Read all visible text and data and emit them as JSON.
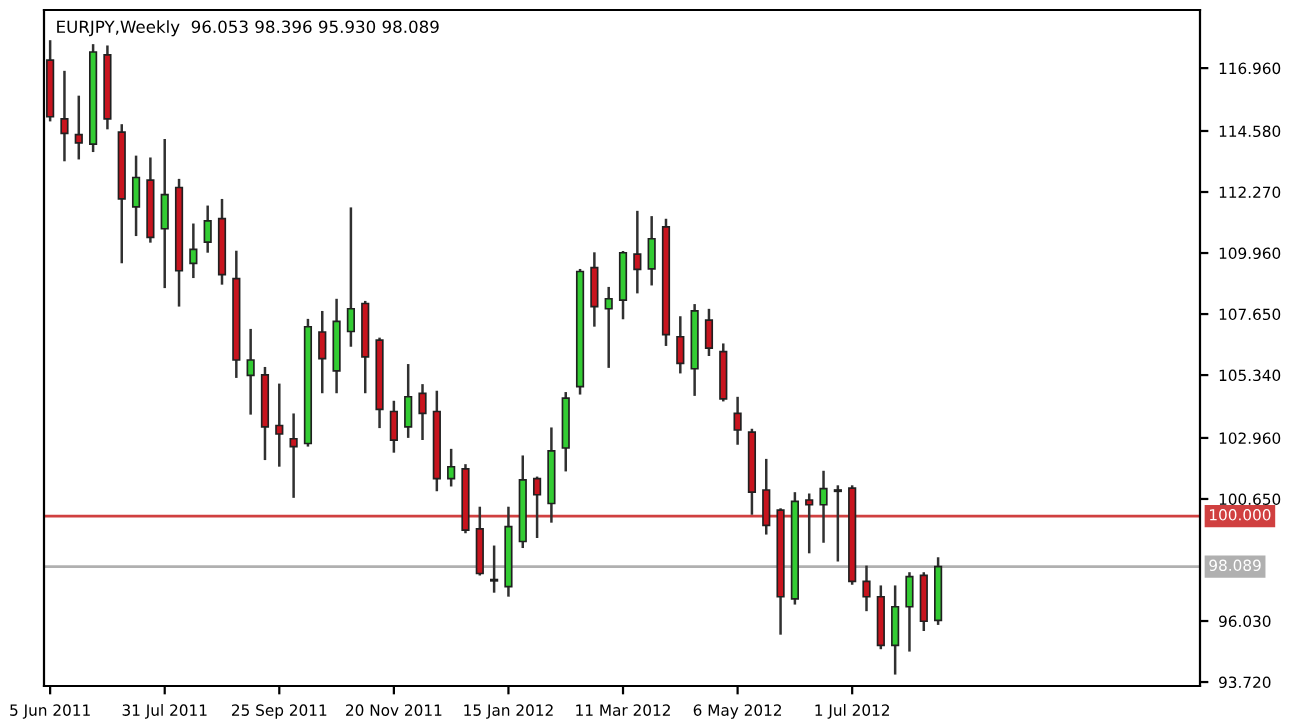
{
  "chart_data": {
    "type": "candlestick",
    "title": "EURJPY,Weekly  96.053 98.396 95.930 98.089",
    "x": [
      "2011-06-05",
      "2011-06-12",
      "2011-06-19",
      "2011-06-26",
      "2011-07-03",
      "2011-07-10",
      "2011-07-17",
      "2011-07-24",
      "2011-07-31",
      "2011-08-07",
      "2011-08-14",
      "2011-08-21",
      "2011-08-28",
      "2011-09-04",
      "2011-09-11",
      "2011-09-18",
      "2011-09-25",
      "2011-10-02",
      "2011-10-09",
      "2011-10-16",
      "2011-10-23",
      "2011-10-30",
      "2011-11-06",
      "2011-11-13",
      "2011-11-20",
      "2011-11-27",
      "2011-12-04",
      "2011-12-11",
      "2011-12-18",
      "2011-12-25",
      "2012-01-01",
      "2012-01-08",
      "2012-01-15",
      "2012-01-22",
      "2012-01-29",
      "2012-02-05",
      "2012-02-12",
      "2012-02-19",
      "2012-02-26",
      "2012-03-04",
      "2012-03-11",
      "2012-03-18",
      "2012-03-25",
      "2012-04-01",
      "2012-04-08",
      "2012-04-15",
      "2012-04-22",
      "2012-04-29",
      "2012-05-06",
      "2012-05-13",
      "2012-05-20",
      "2012-05-27",
      "2012-06-03",
      "2012-06-10",
      "2012-06-17",
      "2012-06-24",
      "2012-07-01",
      "2012-07-08",
      "2012-07-15",
      "2012-07-22",
      "2012-07-29",
      "2012-08-05",
      "2012-08-12"
    ],
    "ohlc": [
      [
        117.26,
        117.97,
        114.99,
        115.12
      ],
      [
        115.04,
        116.81,
        113.48,
        114.49
      ],
      [
        114.44,
        115.87,
        113.55,
        114.13
      ],
      [
        114.08,
        117.82,
        113.83,
        117.57
      ],
      [
        117.46,
        117.77,
        114.69,
        115.04
      ],
      [
        114.54,
        114.79,
        109.62,
        112.01
      ],
      [
        111.71,
        113.6,
        110.65,
        112.82
      ],
      [
        112.72,
        113.53,
        110.4,
        110.55
      ],
      [
        110.88,
        114.23,
        108.68,
        112.17
      ],
      [
        112.44,
        112.72,
        107.98,
        109.29
      ],
      [
        109.57,
        111.03,
        109.06,
        110.1
      ],
      [
        110.37,
        111.71,
        110.02,
        111.18
      ],
      [
        111.26,
        111.96,
        108.81,
        109.14
      ],
      [
        108.99,
        110.0,
        105.28,
        105.91
      ],
      [
        105.33,
        107.04,
        103.89,
        105.91
      ],
      [
        105.35,
        105.6,
        102.17,
        103.38
      ],
      [
        103.43,
        104.97,
        101.92,
        103.11
      ],
      [
        102.93,
        103.84,
        100.74,
        102.63
      ],
      [
        102.75,
        107.42,
        102.68,
        107.17
      ],
      [
        106.97,
        107.72,
        104.7,
        105.96
      ],
      [
        105.5,
        108.18,
        104.7,
        107.37
      ],
      [
        106.99,
        111.64,
        106.46,
        107.85
      ],
      [
        108.05,
        108.1,
        104.7,
        106.03
      ],
      [
        106.66,
        106.71,
        103.38,
        104.04
      ],
      [
        103.96,
        104.32,
        102.45,
        102.88
      ],
      [
        103.38,
        105.71,
        103.01,
        104.52
      ],
      [
        104.65,
        104.95,
        102.93,
        103.89
      ],
      [
        103.96,
        104.7,
        100.99,
        101.42
      ],
      [
        101.42,
        102.5,
        101.17,
        101.87
      ],
      [
        101.79,
        101.92,
        99.4,
        99.47
      ],
      [
        99.52,
        100.31,
        97.8,
        97.83
      ],
      [
        97.6,
        98.84,
        97.15,
        97.55
      ],
      [
        97.33,
        100.31,
        97.0,
        99.6
      ],
      [
        99.04,
        102.25,
        98.84,
        101.37
      ],
      [
        101.42,
        101.45,
        99.22,
        100.81
      ],
      [
        100.48,
        103.31,
        99.8,
        102.47
      ],
      [
        102.58,
        104.65,
        101.74,
        104.47
      ],
      [
        104.9,
        109.31,
        104.65,
        109.26
      ],
      [
        109.41,
        109.94,
        107.22,
        107.93
      ],
      [
        107.85,
        108.63,
        105.66,
        108.23
      ],
      [
        108.18,
        109.99,
        107.5,
        109.97
      ],
      [
        109.92,
        111.51,
        108.48,
        109.34
      ],
      [
        109.36,
        111.31,
        108.78,
        110.5
      ],
      [
        110.95,
        111.21,
        106.49,
        106.87
      ],
      [
        106.79,
        107.52,
        105.45,
        105.78
      ],
      [
        105.58,
        107.98,
        104.6,
        107.77
      ],
      [
        107.42,
        107.8,
        106.11,
        106.36
      ],
      [
        106.23,
        106.49,
        104.39,
        104.44
      ],
      [
        103.89,
        104.47,
        102.75,
        103.26
      ],
      [
        103.18,
        103.26,
        100.1,
        100.91
      ],
      [
        100.99,
        102.12,
        99.35,
        99.65
      ],
      [
        100.23,
        100.25,
        95.56,
        96.95
      ],
      [
        96.87,
        100.86,
        96.7,
        100.56
      ],
      [
        100.61,
        100.81,
        98.64,
        100.43
      ],
      [
        100.43,
        101.67,
        99.04,
        101.04
      ],
      [
        100.94,
        101.12,
        98.33,
        100.99
      ],
      [
        101.06,
        101.12,
        97.45,
        97.53
      ],
      [
        97.53,
        98.08,
        96.45,
        96.95
      ],
      [
        96.95,
        97.33,
        95.01,
        95.11
      ],
      [
        95.11,
        97.33,
        94.05,
        96.57
      ],
      [
        96.57,
        97.83,
        94.92,
        97.71
      ],
      [
        97.76,
        97.83,
        95.7,
        96.02
      ],
      [
        96.053,
        98.396,
        95.93,
        98.089
      ]
    ],
    "colors": [
      "#c8141e",
      "#c8141e",
      "#c8141e",
      "#33cc33",
      "#c8141e",
      "#c8141e",
      "#33cc33",
      "#c8141e",
      "#33cc33",
      "#c8141e",
      "#33cc33",
      "#33cc33",
      "#c8141e",
      "#c8141e",
      "#33cc33",
      "#c8141e",
      "#c8141e",
      "#c8141e",
      "#33cc33",
      "#c8141e",
      "#33cc33",
      "#33cc33",
      "#c8141e",
      "#c8141e",
      "#c8141e",
      "#33cc33",
      "#c8141e",
      "#c8141e",
      "#33cc33",
      "#c8141e",
      "#c8141e",
      "#c8141e",
      "#33cc33",
      "#33cc33",
      "#c8141e",
      "#33cc33",
      "#33cc33",
      "#33cc33",
      "#c8141e",
      "#33cc33",
      "#33cc33",
      "#c8141e",
      "#33cc33",
      "#c8141e",
      "#c8141e",
      "#33cc33",
      "#c8141e",
      "#c8141e",
      "#c8141e",
      "#c8141e",
      "#c8141e",
      "#c8141e",
      "#33cc33",
      "#c8141e",
      "#33cc33",
      "#33cc33",
      "#c8141e",
      "#c8141e",
      "#c8141e",
      "#33cc33",
      "#33cc33",
      "#c8141e",
      "#33cc33"
    ],
    "xlim": [
      "2011-06-02",
      "2012-12-18"
    ],
    "xticks": [
      {
        "value": "2011-06-05",
        "label": "5 Jun 2011"
      },
      {
        "value": "2011-07-31",
        "label": "31 Jul 2011"
      },
      {
        "value": "2011-09-25",
        "label": "25 Sep 2011"
      },
      {
        "value": "2011-11-20",
        "label": "20 Nov 2011"
      },
      {
        "value": "2012-01-15",
        "label": "15 Jan 2012"
      },
      {
        "value": "2012-03-11",
        "label": "11 Mar 2012"
      },
      {
        "value": "2012-05-06",
        "label": "6 May 2012"
      },
      {
        "value": "2012-07-01",
        "label": "1 Jul 2012"
      }
    ],
    "ylim": [
      93.57,
      119.16
    ],
    "yticks": [
      {
        "value": 93.72,
        "label": "93.720"
      },
      {
        "value": 96.03,
        "label": "96.030"
      },
      {
        "value": 100.65,
        "label": "100.650"
      },
      {
        "value": 102.96,
        "label": "102.960"
      },
      {
        "value": 105.34,
        "label": "105.340"
      },
      {
        "value": 107.65,
        "label": "107.650"
      },
      {
        "value": 109.96,
        "label": "109.960"
      },
      {
        "value": 112.27,
        "label": "112.270"
      },
      {
        "value": 114.58,
        "label": "114.580"
      },
      {
        "value": 116.96,
        "label": "116.960"
      }
    ],
    "ref_lines": [
      {
        "axis": "y",
        "value": 100.0,
        "label": "100.000",
        "color": "#d04040"
      },
      {
        "axis": "y",
        "value": 98.089,
        "label": "98.089",
        "color": "#b0b0b0"
      }
    ],
    "grid": false
  }
}
